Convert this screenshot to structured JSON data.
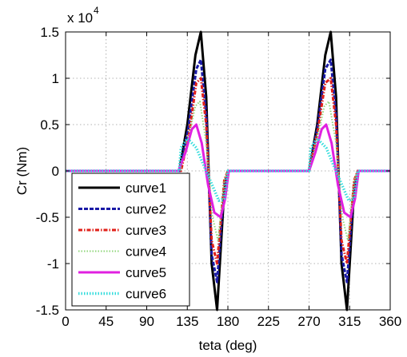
{
  "chart_data": {
    "type": "line",
    "title": "",
    "xlabel": "teta (deg)",
    "ylabel": "Cr (Nm)",
    "y_multiplier": {
      "base": "x 10",
      "exponent": "4"
    },
    "xlim": [
      0,
      360
    ],
    "ylim": [
      -1.5,
      1.5
    ],
    "x_ticks": [
      0,
      45,
      90,
      135,
      180,
      225,
      270,
      315,
      360
    ],
    "y_ticks": [
      -1.5,
      -1,
      -0.5,
      0,
      0.5,
      1,
      1.5
    ],
    "y_tick_labels": [
      "-1.5",
      "-1",
      "-0.5",
      "0",
      "0.5",
      "1",
      "1.5"
    ],
    "grid": true,
    "legend_position": "bottom-left",
    "colors": {
      "curve1": "#000000",
      "curve2": "#1a1aa6",
      "curve3": "#e0201a",
      "curve4": "#8fd67a",
      "curve5": "#e020e0",
      "curve6": "#33dcdc"
    },
    "series": [
      {
        "name": "curve1",
        "style": "solid",
        "x": [
          0,
          126,
          135,
          144,
          150,
          156,
          162,
          168,
          176,
          180,
          270,
          279,
          288,
          294,
          300,
          306,
          312,
          320,
          324,
          360
        ],
        "y": [
          0,
          0,
          0.5,
          1.25,
          1.5,
          0.8,
          -1,
          -1.5,
          -0.2,
          0,
          0,
          0.5,
          1.25,
          1.5,
          0.8,
          -1,
          -1.5,
          -0.2,
          0,
          0
        ]
      },
      {
        "name": "curve2",
        "style": "dashed",
        "x": [
          0,
          127,
          136,
          145,
          150,
          156,
          162,
          168,
          176,
          180,
          270,
          279,
          288,
          294,
          300,
          306,
          312,
          320,
          324,
          360
        ],
        "y": [
          0,
          0,
          0.45,
          1.1,
          1.2,
          0.6,
          -0.9,
          -1.2,
          -0.15,
          0,
          0,
          0.45,
          1.1,
          1.2,
          0.6,
          -0.9,
          -1.2,
          -0.15,
          0,
          0
        ]
      },
      {
        "name": "curve3",
        "style": "dashdot",
        "x": [
          0,
          128,
          137,
          145,
          150,
          156,
          162,
          168,
          176,
          180,
          270,
          279,
          288,
          294,
          300,
          306,
          312,
          320,
          324,
          360
        ],
        "y": [
          0,
          0,
          0.4,
          0.95,
          1.0,
          0.5,
          -0.75,
          -1.0,
          -0.1,
          0,
          0,
          0.4,
          0.95,
          1.0,
          0.5,
          -0.75,
          -1.0,
          -0.1,
          0,
          0
        ]
      },
      {
        "name": "curve4",
        "style": "dotted",
        "x": [
          0,
          127,
          136,
          144,
          149,
          156,
          163,
          169,
          176,
          180,
          270,
          279,
          287,
          292,
          300,
          307,
          313,
          320,
          324,
          360
        ],
        "y": [
          0,
          0,
          0.35,
          0.7,
          0.75,
          0.3,
          -0.5,
          -0.75,
          -0.1,
          0,
          0,
          0.35,
          0.7,
          0.75,
          0.3,
          -0.5,
          -0.75,
          -0.1,
          0,
          0
        ]
      },
      {
        "name": "curve5",
        "style": "solid",
        "x": [
          0,
          125,
          133,
          140,
          145,
          151,
          158,
          165,
          172,
          177,
          181,
          270,
          277,
          284,
          289,
          295,
          302,
          309,
          316,
          321,
          325,
          360
        ],
        "y": [
          0,
          0,
          0.2,
          0.45,
          0.5,
          0.3,
          -0.15,
          -0.45,
          -0.5,
          -0.3,
          0,
          0,
          0.2,
          0.45,
          0.5,
          0.3,
          -0.15,
          -0.45,
          -0.5,
          -0.3,
          0,
          0
        ]
      },
      {
        "name": "curve6",
        "style": "dotted",
        "x": [
          0,
          126,
          128,
          135,
          145,
          158,
          170,
          176,
          180,
          270,
          272,
          279,
          289,
          302,
          314,
          320,
          324,
          360
        ],
        "y": [
          0,
          0,
          0.25,
          0.35,
          0.25,
          -0.05,
          -0.32,
          -0.3,
          0,
          0,
          0.25,
          0.35,
          0.25,
          -0.05,
          -0.32,
          -0.3,
          0,
          0
        ]
      }
    ]
  }
}
